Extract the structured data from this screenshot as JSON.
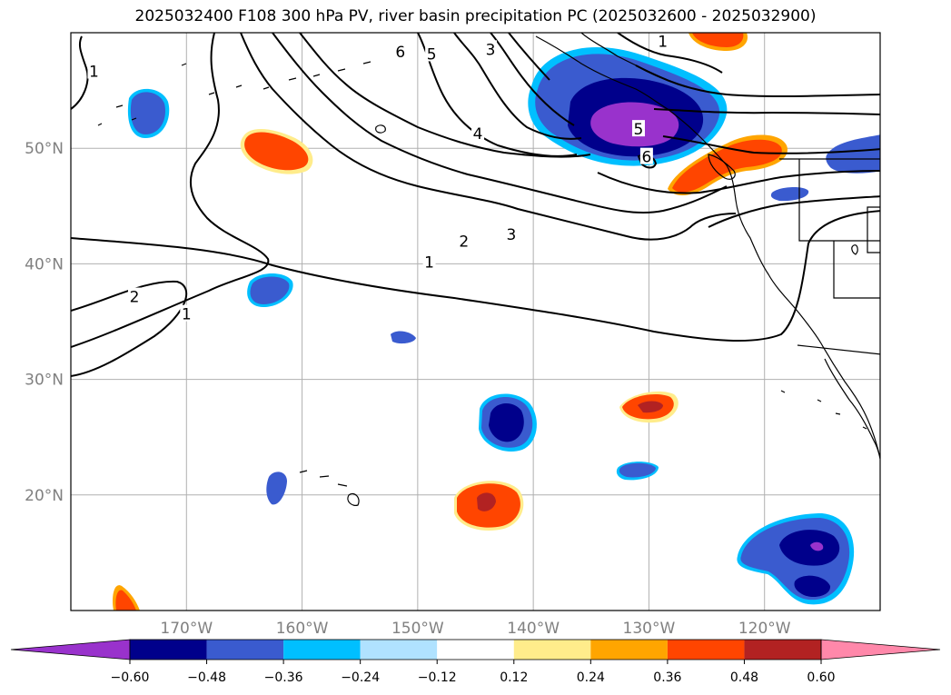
{
  "title": "2025032400 F108 300 hPa PV, river basin precipitation PC (2025032600 - 2025032900)",
  "map": {
    "lon_range": [
      -180,
      -110
    ],
    "lat_range": [
      10,
      60
    ],
    "lat_labels": [
      {
        "lat": 50,
        "text": "50°N"
      },
      {
        "lat": 40,
        "text": "40°N"
      },
      {
        "lat": 30,
        "text": "30°N"
      },
      {
        "lat": 20,
        "text": "20°N"
      }
    ],
    "lon_labels": [
      {
        "lon": -170,
        "text": "170°W"
      },
      {
        "lon": -160,
        "text": "160°W"
      },
      {
        "lon": -150,
        "text": "150°W"
      },
      {
        "lon": -140,
        "text": "140°W"
      },
      {
        "lon": -130,
        "text": "130°W"
      },
      {
        "lon": -120,
        "text": "120°W"
      }
    ],
    "contour_labels": [
      {
        "text": "1",
        "lon": -178,
        "lat": 56.5
      },
      {
        "text": "6",
        "lon": -151.5,
        "lat": 58.2
      },
      {
        "text": "5",
        "lon": -148.8,
        "lat": 58.0
      },
      {
        "text": "3",
        "lon": -143.7,
        "lat": 58.4
      },
      {
        "text": "1",
        "lon": -128.8,
        "lat": 59.1
      },
      {
        "text": "4",
        "lon": -144.8,
        "lat": 51.1
      },
      {
        "text": "5",
        "lon": -130.9,
        "lat": 51.5
      },
      {
        "text": "6",
        "lon": -130.2,
        "lat": 49.1
      },
      {
        "text": "3",
        "lon": -141.9,
        "lat": 42.4
      },
      {
        "text": "2",
        "lon": -146.0,
        "lat": 41.8
      },
      {
        "text": "1",
        "lon": -149.0,
        "lat": 40.0
      },
      {
        "text": "2",
        "lon": -174.5,
        "lat": 37.0
      },
      {
        "text": "1",
        "lon": -170.0,
        "lat": 35.5
      }
    ]
  },
  "colorbar": {
    "colors": [
      "#9932cc",
      "#00008b",
      "#3a5bcf",
      "#00bfff",
      "#b0e2ff",
      "#ffffff",
      "#ffec8b",
      "#ffa500",
      "#ff4500",
      "#b22222",
      "#ff88aa"
    ],
    "tick_labels": [
      "−0.60",
      "−0.48",
      "−0.36",
      "−0.24",
      "−0.12",
      "0.12",
      "0.24",
      "0.36",
      "0.48",
      "0.60"
    ]
  }
}
